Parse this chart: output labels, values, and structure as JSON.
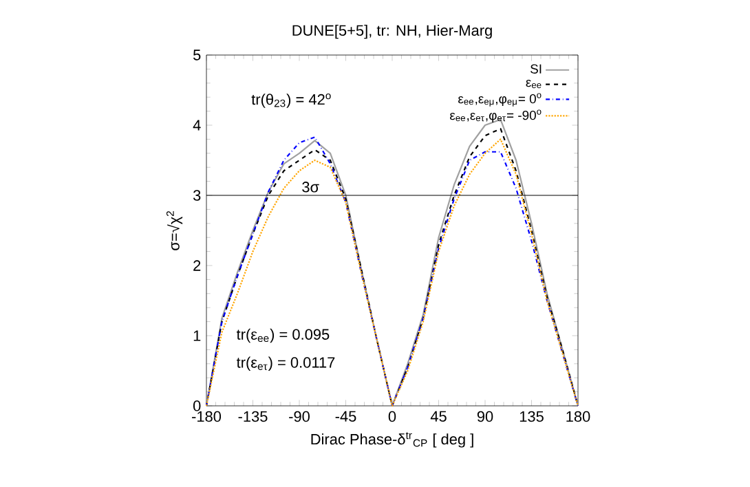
{
  "chart_data": {
    "type": "line",
    "title": "DUNE[5+5], tr: NH, Hier-Marg",
    "xlabel": "Dirac Phase-δ$^{tr}$$_{CP}$ [ deg ]",
    "ylabel": "σ=√χ$^{2}$",
    "x": [
      -180,
      -165,
      -150,
      -135,
      -120,
      -105,
      -90,
      -75,
      -60,
      -45,
      -30,
      -15,
      0,
      15,
      30,
      45,
      60,
      75,
      90,
      105,
      120,
      135,
      150,
      165,
      180
    ],
    "series": [
      {
        "name": "SI",
        "color": "#a0a0a0",
        "line_style": "solid",
        "values": [
          0,
          1.25,
          1.9,
          2.5,
          3.05,
          3.45,
          3.6,
          3.78,
          3.6,
          3.0,
          1.95,
          0.95,
          0,
          0.6,
          1.3,
          2.4,
          3.15,
          3.7,
          4.0,
          4.08,
          3.5,
          2.6,
          1.6,
          0.8,
          0
        ]
      },
      {
        "name": "ε$_{ee}$",
        "color": "#000000",
        "line_style": "dashed",
        "values": [
          0,
          1.2,
          1.85,
          2.45,
          3.0,
          3.35,
          3.5,
          3.65,
          3.5,
          2.95,
          1.95,
          0.95,
          0,
          0.55,
          1.25,
          2.3,
          3.0,
          3.55,
          3.85,
          3.95,
          3.35,
          2.5,
          1.55,
          0.8,
          0
        ]
      },
      {
        "name": "ε$_{ee}$,ε$_{eμ}$,φ$_{eμ}$= 0$^{o}$",
        "color": "#0000ff",
        "line_style": "dashdot",
        "values": [
          0,
          1.2,
          1.85,
          2.45,
          3.05,
          3.5,
          3.75,
          3.83,
          3.45,
          2.9,
          1.9,
          0.95,
          0,
          0.55,
          1.25,
          2.25,
          2.95,
          3.5,
          3.62,
          3.62,
          3.1,
          2.35,
          1.5,
          0.75,
          0
        ]
      },
      {
        "name": "ε$_{ee}$,ε$_{eτ}$,φ$_{eτ}$= -90$^{o}$",
        "color": "#ffa500",
        "line_style": "dotted",
        "values": [
          0,
          1.05,
          1.6,
          2.2,
          2.7,
          3.1,
          3.35,
          3.5,
          3.4,
          2.9,
          1.9,
          0.95,
          0,
          0.5,
          1.2,
          2.2,
          2.85,
          3.3,
          3.6,
          3.8,
          3.3,
          2.45,
          1.5,
          0.75,
          0
        ]
      }
    ],
    "xlim": [
      -180,
      180
    ],
    "xticks": [
      -180,
      -135,
      -90,
      -45,
      0,
      45,
      90,
      135,
      180
    ],
    "ylim": [
      0,
      5
    ],
    "yticks": [
      0,
      1,
      2,
      3,
      4,
      5
    ],
    "ref_lines": [
      {
        "axis": "y",
        "value": 3,
        "label": "3σ",
        "color": "#000000"
      }
    ],
    "annotations": [
      "tr(θ$_{23}$) = 42$^{o}$",
      "tr(ε$_{ee}$) = 0.095",
      "tr(ε$_{eτ}$) = 0.0117"
    ],
    "legend": "top right",
    "grid": false,
    "marker": "none"
  }
}
